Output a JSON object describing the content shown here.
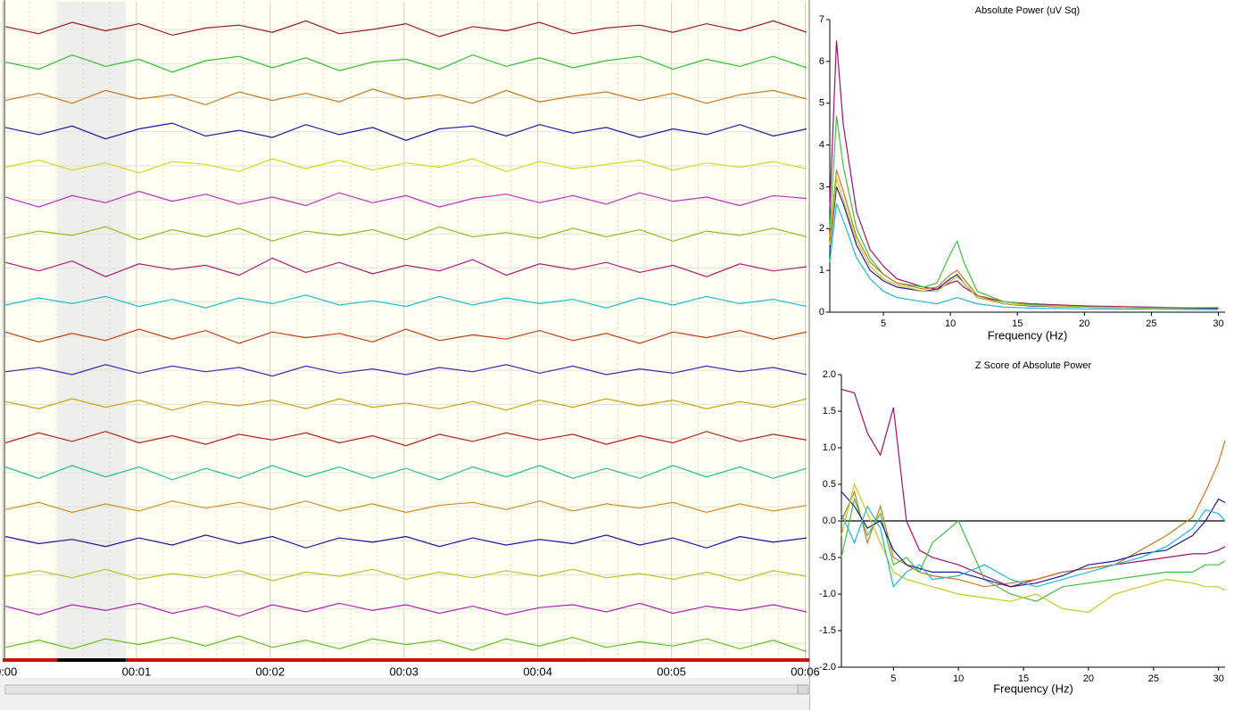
{
  "eeg": {
    "xlim": [
      0,
      6.03
    ],
    "xticks": [
      {
        "value": 0,
        "label": "00:00"
      },
      {
        "value": 1,
        "label": "00:01"
      },
      {
        "value": 2,
        "label": "00:02"
      },
      {
        "value": 3,
        "label": "00:03"
      },
      {
        "value": 4,
        "label": "00:04"
      },
      {
        "value": 5,
        "label": "00:05"
      },
      {
        "value": 6,
        "label": "00:06"
      }
    ],
    "selection": [
      0.41,
      0.92
    ],
    "traces": [
      {
        "color": "#a01818",
        "values": [
          2,
          -3,
          5,
          -1,
          4,
          -4,
          1,
          3,
          -2,
          6,
          -3,
          0,
          4,
          -5,
          2,
          -1,
          5,
          -3,
          1,
          3,
          -2,
          4,
          -1,
          6,
          -2
        ]
      },
      {
        "color": "#30c030",
        "values": [
          1,
          -4,
          6,
          -2,
          3,
          -6,
          2,
          5,
          -3,
          4,
          -5,
          1,
          3,
          -4,
          6,
          -2,
          4,
          -3,
          2,
          5,
          -4,
          3,
          -2,
          5,
          -3
        ]
      },
      {
        "color": "#c87820",
        "values": [
          -2,
          3,
          -4,
          5,
          -1,
          2,
          -5,
          4,
          -2,
          3,
          -3,
          6,
          -1,
          2,
          -4,
          5,
          -3,
          1,
          4,
          -2,
          3,
          -4,
          2,
          5,
          -1
        ]
      },
      {
        "color": "#1a1aa0",
        "values": [
          3,
          -2,
          4,
          -5,
          2,
          6,
          -3,
          1,
          -4,
          5,
          -2,
          3,
          -6,
          2,
          4,
          -3,
          5,
          -1,
          3,
          -4,
          2,
          -2,
          5,
          -3,
          2
        ]
      },
      {
        "color": "#d8d820",
        "values": [
          -1,
          4,
          -3,
          2,
          -5,
          3,
          1,
          -4,
          5,
          -2,
          4,
          -3,
          2,
          -1,
          5,
          -4,
          3,
          -2,
          1,
          4,
          -3,
          2,
          -1,
          3,
          -2
        ]
      },
      {
        "color": "#c030c0",
        "values": [
          2,
          -5,
          3,
          -2,
          6,
          -1,
          4,
          -3,
          2,
          -4,
          5,
          -2,
          3,
          -5,
          1,
          4,
          -2,
          3,
          -3,
          5,
          -1,
          2,
          -4,
          3,
          1
        ]
      },
      {
        "color": "#90c020",
        "values": [
          -3,
          2,
          -1,
          5,
          -4,
          3,
          -2,
          4,
          -5,
          2,
          -1,
          3,
          -4,
          5,
          -2,
          1,
          -3,
          4,
          -2,
          3,
          -5,
          2,
          -1,
          4,
          -2
        ]
      },
      {
        "color": "#b01870",
        "values": [
          4,
          -2,
          5,
          -6,
          3,
          -1,
          2,
          -5,
          7,
          -3,
          4,
          -4,
          2,
          -2,
          6,
          -5,
          3,
          -1,
          4,
          -3,
          2,
          -6,
          3,
          -2,
          1
        ]
      },
      {
        "color": "#20c0c8",
        "values": [
          -2,
          3,
          -1,
          4,
          -3,
          2,
          -4,
          3,
          -1,
          5,
          -2,
          1,
          -3,
          4,
          -2,
          3,
          -1,
          2,
          -4,
          3,
          -2,
          4,
          -1,
          2,
          -3
        ]
      },
      {
        "color": "#c04010",
        "values": [
          3,
          -4,
          2,
          -3,
          5,
          -2,
          4,
          -5,
          3,
          -1,
          2,
          -4,
          5,
          -3,
          1,
          -2,
          4,
          -3,
          2,
          -5,
          3,
          -1,
          4,
          -2,
          3
        ]
      },
      {
        "color": "#5020b0",
        "values": [
          -1,
          2,
          -3,
          4,
          -2,
          3,
          -1,
          2,
          -4,
          3,
          -2,
          1,
          -3,
          2,
          -1,
          4,
          -2,
          3,
          -3,
          1,
          -2,
          3,
          -1,
          2,
          -3
        ]
      },
      {
        "color": "#d0a010",
        "values": [
          2,
          -3,
          4,
          -2,
          3,
          -4,
          2,
          -1,
          3,
          -3,
          4,
          -2,
          1,
          -3,
          2,
          -4,
          3,
          -2,
          4,
          -1,
          3,
          -3,
          2,
          -2,
          4
        ]
      },
      {
        "color": "#b82010",
        "values": [
          -3,
          4,
          -2,
          5,
          -3,
          2,
          -4,
          3,
          -1,
          4,
          -3,
          2,
          -5,
          3,
          -2,
          4,
          -1,
          3,
          -4,
          2,
          -3,
          5,
          -2,
          3,
          -1
        ]
      },
      {
        "color": "#20c090",
        "values": [
          4,
          -4,
          5,
          -3,
          4,
          -5,
          3,
          -4,
          5,
          -3,
          4,
          -4,
          3,
          -5,
          4,
          -3,
          5,
          -4,
          3,
          -4,
          5,
          -3,
          4,
          -4,
          3
        ]
      },
      {
        "color": "#d09020",
        "values": [
          -2,
          3,
          -4,
          2,
          -3,
          4,
          -1,
          3,
          -2,
          4,
          -3,
          2,
          -4,
          1,
          3,
          -2,
          4,
          -3,
          2,
          -1,
          3,
          -4,
          2,
          -3,
          1
        ]
      },
      {
        "color": "#2010a0",
        "values": [
          3,
          -2,
          1,
          -4,
          2,
          -3,
          4,
          -2,
          3,
          -5,
          2,
          -1,
          3,
          -4,
          2,
          -3,
          1,
          -2,
          4,
          -3,
          2,
          -5,
          3,
          -1,
          2
        ]
      },
      {
        "color": "#b0c820",
        "values": [
          -1,
          3,
          -2,
          4,
          -3,
          1,
          -2,
          3,
          -4,
          2,
          -1,
          4,
          -3,
          2,
          -2,
          3,
          -1,
          4,
          -2,
          1,
          -3,
          2,
          -4,
          3,
          -1
        ]
      },
      {
        "color": "#b020b0",
        "values": [
          2,
          -4,
          3,
          -1,
          4,
          -3,
          2,
          -5,
          3,
          -2,
          4,
          -1,
          3,
          -3,
          2,
          -4,
          1,
          3,
          -2,
          4,
          -3,
          2,
          -1,
          3,
          -2
        ]
      },
      {
        "color": "#60c020",
        "values": [
          -3,
          2,
          -4,
          3,
          -1,
          4,
          -2,
          5,
          -3,
          2,
          -4,
          3,
          -1,
          2,
          -5,
          3,
          -2,
          4,
          -3,
          1,
          -2,
          3,
          -4,
          2,
          -6
        ]
      }
    ]
  },
  "chart_data": [
    {
      "type": "line",
      "title": "Absolute Power (uV Sq)",
      "x_label": "Frequency (Hz)",
      "x": [
        1,
        1.5,
        2,
        3,
        4,
        5,
        6,
        8,
        9,
        10,
        10.5,
        11,
        12,
        14,
        16,
        20,
        25,
        30
      ],
      "xlim": [
        1,
        30.5
      ],
      "ylim": [
        0,
        7
      ],
      "xticks": [
        5,
        10,
        15,
        20,
        25,
        30
      ],
      "yticks": [
        0,
        1,
        2,
        3,
        4,
        5,
        6,
        7
      ],
      "series": [
        {
          "color": "#a0106a",
          "values": [
            2.5,
            6.5,
            4.5,
            2.4,
            1.5,
            1.1,
            0.8,
            0.6,
            0.55,
            0.7,
            0.75,
            0.6,
            0.4,
            0.25,
            0.2,
            0.15,
            0.12,
            0.1
          ]
        },
        {
          "color": "#40c040",
          "values": [
            2,
            4.7,
            3.5,
            2.0,
            1.3,
            0.9,
            0.7,
            0.6,
            0.7,
            1.4,
            1.7,
            1.2,
            0.5,
            0.25,
            0.18,
            0.13,
            0.1,
            0.08
          ]
        },
        {
          "color": "#c87820",
          "values": [
            1.8,
            3.4,
            2.9,
            1.8,
            1.2,
            0.9,
            0.7,
            0.55,
            0.6,
            0.9,
            1.0,
            0.8,
            0.4,
            0.2,
            0.15,
            0.12,
            0.1,
            0.1
          ]
        },
        {
          "color": "#1a1aa0",
          "values": [
            1.5,
            3.0,
            2.6,
            1.6,
            1.0,
            0.75,
            0.6,
            0.5,
            0.55,
            0.8,
            0.9,
            0.7,
            0.35,
            0.2,
            0.15,
            0.12,
            0.1,
            0.1
          ]
        },
        {
          "color": "#20b8d0",
          "values": [
            1.2,
            2.6,
            2.2,
            1.3,
            0.8,
            0.5,
            0.35,
            0.25,
            0.2,
            0.3,
            0.35,
            0.3,
            0.2,
            0.12,
            0.1,
            0.08,
            0.07,
            0.06
          ]
        },
        {
          "color": "#c8c820",
          "values": [
            1.6,
            3.2,
            2.7,
            1.7,
            1.1,
            0.8,
            0.65,
            0.5,
            0.5,
            0.75,
            0.85,
            0.7,
            0.35,
            0.2,
            0.16,
            0.12,
            0.1,
            0.12
          ]
        }
      ]
    },
    {
      "type": "line",
      "title": "Z Score of Absolute Power",
      "x_label": "Frequency (Hz)",
      "x": [
        1,
        2,
        3,
        4,
        5,
        6,
        7,
        8,
        10,
        12,
        14,
        16,
        18,
        20,
        22,
        24,
        26,
        28,
        29,
        30,
        30.5
      ],
      "xlim": [
        1,
        30.5
      ],
      "ylim": [
        -2,
        2
      ],
      "xticks": [
        5,
        10,
        15,
        20,
        25,
        30
      ],
      "yticks": [
        {
          "value": 2,
          "label": "2.0"
        },
        {
          "value": 1.5,
          "label": "1.5"
        },
        {
          "value": 1,
          "label": "1.0"
        },
        {
          "value": 0.5,
          "label": "0.5"
        },
        {
          "value": 0,
          "label": "0.0"
        },
        {
          "value": -0.5,
          "label": "-0.5"
        },
        {
          "value": -1,
          "label": "-1.0"
        },
        {
          "value": -1.5,
          "label": "-1.5"
        },
        {
          "value": -2,
          "label": "-2.0"
        }
      ],
      "zero_line": 0,
      "series": [
        {
          "color": "#a0106a",
          "values": [
            1.8,
            1.75,
            1.2,
            0.9,
            1.55,
            0,
            -0.4,
            -0.5,
            -0.6,
            -0.75,
            -0.9,
            -0.8,
            -0.7,
            -0.65,
            -0.6,
            -0.55,
            -0.5,
            -0.45,
            -0.45,
            -0.4,
            -0.35
          ]
        },
        {
          "color": "#c87820",
          "values": [
            0,
            0.4,
            -0.3,
            0.2,
            -0.5,
            -0.6,
            -0.7,
            -0.75,
            -0.8,
            -0.9,
            -0.85,
            -0.8,
            -0.7,
            -0.65,
            -0.6,
            -0.4,
            -0.2,
            0.05,
            0.4,
            0.8,
            1.1
          ]
        },
        {
          "color": "#40c040",
          "values": [
            -0.5,
            0.3,
            -0.2,
            0.1,
            -0.6,
            -0.5,
            -0.7,
            -0.3,
            0,
            -0.8,
            -1.0,
            -1.1,
            -0.9,
            -0.85,
            -0.8,
            -0.75,
            -0.7,
            -0.7,
            -0.6,
            -0.6,
            -0.55
          ]
        },
        {
          "color": "#1a1aa0",
          "values": [
            0.4,
            0.2,
            -0.1,
            0.0,
            -0.4,
            -0.6,
            -0.65,
            -0.7,
            -0.7,
            -0.8,
            -0.9,
            -0.85,
            -0.75,
            -0.6,
            -0.55,
            -0.45,
            -0.4,
            -0.2,
            0,
            0.3,
            0.25
          ]
        },
        {
          "color": "#c8c820",
          "values": [
            -0.2,
            0.5,
            0.1,
            -0.3,
            -0.7,
            -0.8,
            -0.85,
            -0.9,
            -1.0,
            -1.05,
            -1.1,
            -1.0,
            -1.2,
            -1.25,
            -1.0,
            -0.9,
            -0.8,
            -0.85,
            -0.9,
            -0.9,
            -0.95
          ]
        },
        {
          "color": "#20b8d0",
          "values": [
            0.1,
            -0.3,
            0.2,
            -0.1,
            -0.9,
            -0.7,
            -0.6,
            -0.8,
            -0.75,
            -0.6,
            -0.8,
            -0.9,
            -0.8,
            -0.7,
            -0.6,
            -0.5,
            -0.35,
            -0.1,
            0.15,
            0.1,
            0.0
          ]
        }
      ]
    }
  ]
}
